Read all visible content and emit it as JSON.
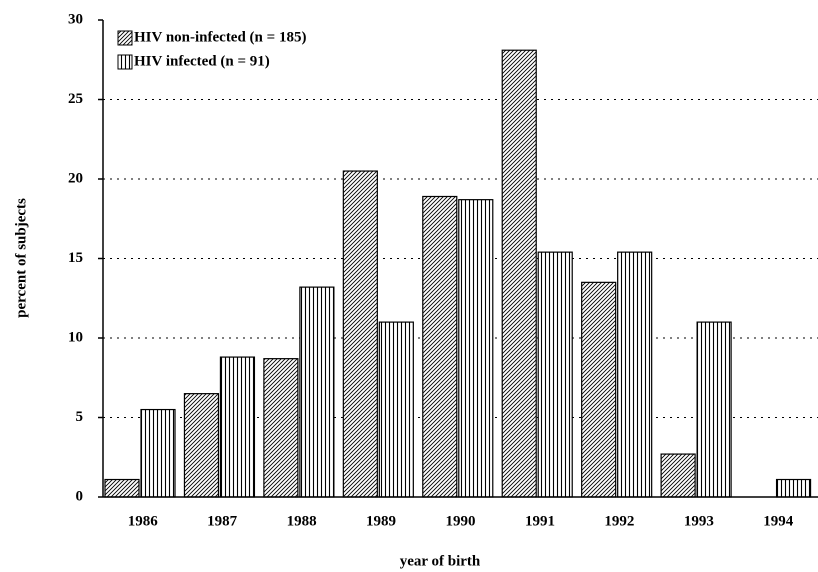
{
  "chart_data": {
    "type": "bar",
    "x_label": "year of birth",
    "y_label": "percent of subjects",
    "categories": [
      "1986",
      "1987",
      "1988",
      "1989",
      "1990",
      "1991",
      "1992",
      "1993",
      "1994"
    ],
    "series": [
      {
        "name": "HIV non-infected (n = 185)",
        "color": "#000000",
        "hatch": "diagonal",
        "values": [
          1.1,
          6.5,
          8.7,
          20.5,
          18.9,
          28.1,
          13.5,
          2.7,
          0
        ]
      },
      {
        "name": "HIV infected (n = 91)",
        "color": "#000000",
        "hatch": "vertical",
        "values": [
          5.5,
          8.8,
          13.2,
          11.0,
          18.7,
          15.4,
          15.4,
          11.0,
          1.1
        ]
      }
    ],
    "ylim": [
      0,
      30
    ],
    "yticks": [
      0,
      5,
      10,
      15,
      20,
      25,
      30
    ],
    "grid": true,
    "legend": "upper left"
  }
}
